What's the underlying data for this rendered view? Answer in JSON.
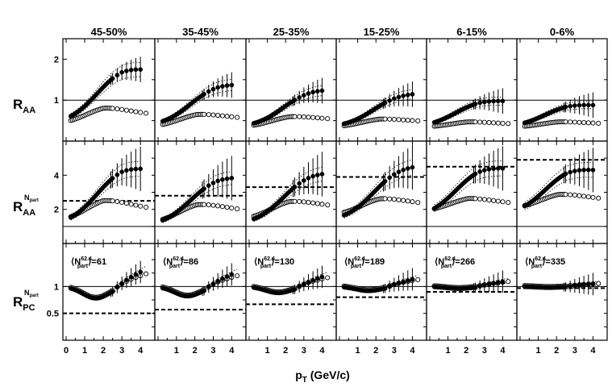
{
  "figure": {
    "column_titles": [
      "45-50%",
      "35-45%",
      "25-35%",
      "15-25%",
      "6-15%",
      "0-6%"
    ],
    "xlabel_main": "p",
    "xlabel_sub": "T",
    "xlabel_unit": " (GeV/c)",
    "row_labels": [
      {
        "main": "R",
        "sub": "AA",
        "sup": ""
      },
      {
        "main": "R",
        "sub": "AA",
        "sup": "N"
      },
      {
        "main": "R",
        "sub": "PC",
        "sup": "N"
      }
    ],
    "row_label_sup_sub": "part",
    "npart_label": {
      "open": "⟨N",
      "sup": "62.4",
      "sub": "part",
      "close": "⟩="
    },
    "npart_values": [
      "61",
      "86",
      "130",
      "189",
      "266",
      "335"
    ]
  },
  "chart_data": {
    "type": "scatter",
    "x_ticks": [
      "0",
      "1",
      "2",
      "3",
      "4"
    ],
    "xlim": [
      0,
      4.6
    ],
    "panels_rows": [
      {
        "name": "R_AA",
        "ylim": [
          0,
          2.5
        ],
        "y_ticks": [
          "1",
          "2"
        ],
        "reference_solid": [
          1,
          1,
          1,
          1,
          1,
          1
        ],
        "reference_dashed": null
      },
      {
        "name": "R_AA^Npart",
        "ylim": [
          0,
          6
        ],
        "y_ticks": [
          "2",
          "4"
        ],
        "reference_solid": [
          1,
          1,
          1,
          1,
          1,
          1
        ],
        "reference_dashed": [
          2.5,
          2.8,
          3.3,
          3.9,
          4.5,
          4.9
        ]
      },
      {
        "name": "R_PC^Npart",
        "ylim": [
          0,
          1.8
        ],
        "y_ticks": [
          "0.5",
          "1"
        ],
        "reference_solid": [
          1,
          1,
          1,
          1,
          1,
          1
        ],
        "reference_dashed": [
          0.5,
          0.57,
          0.67,
          0.8,
          0.9,
          0.97
        ]
      }
    ],
    "series": [
      {
        "marker": "filled-circle"
      },
      {
        "marker": "open-circle"
      }
    ]
  }
}
